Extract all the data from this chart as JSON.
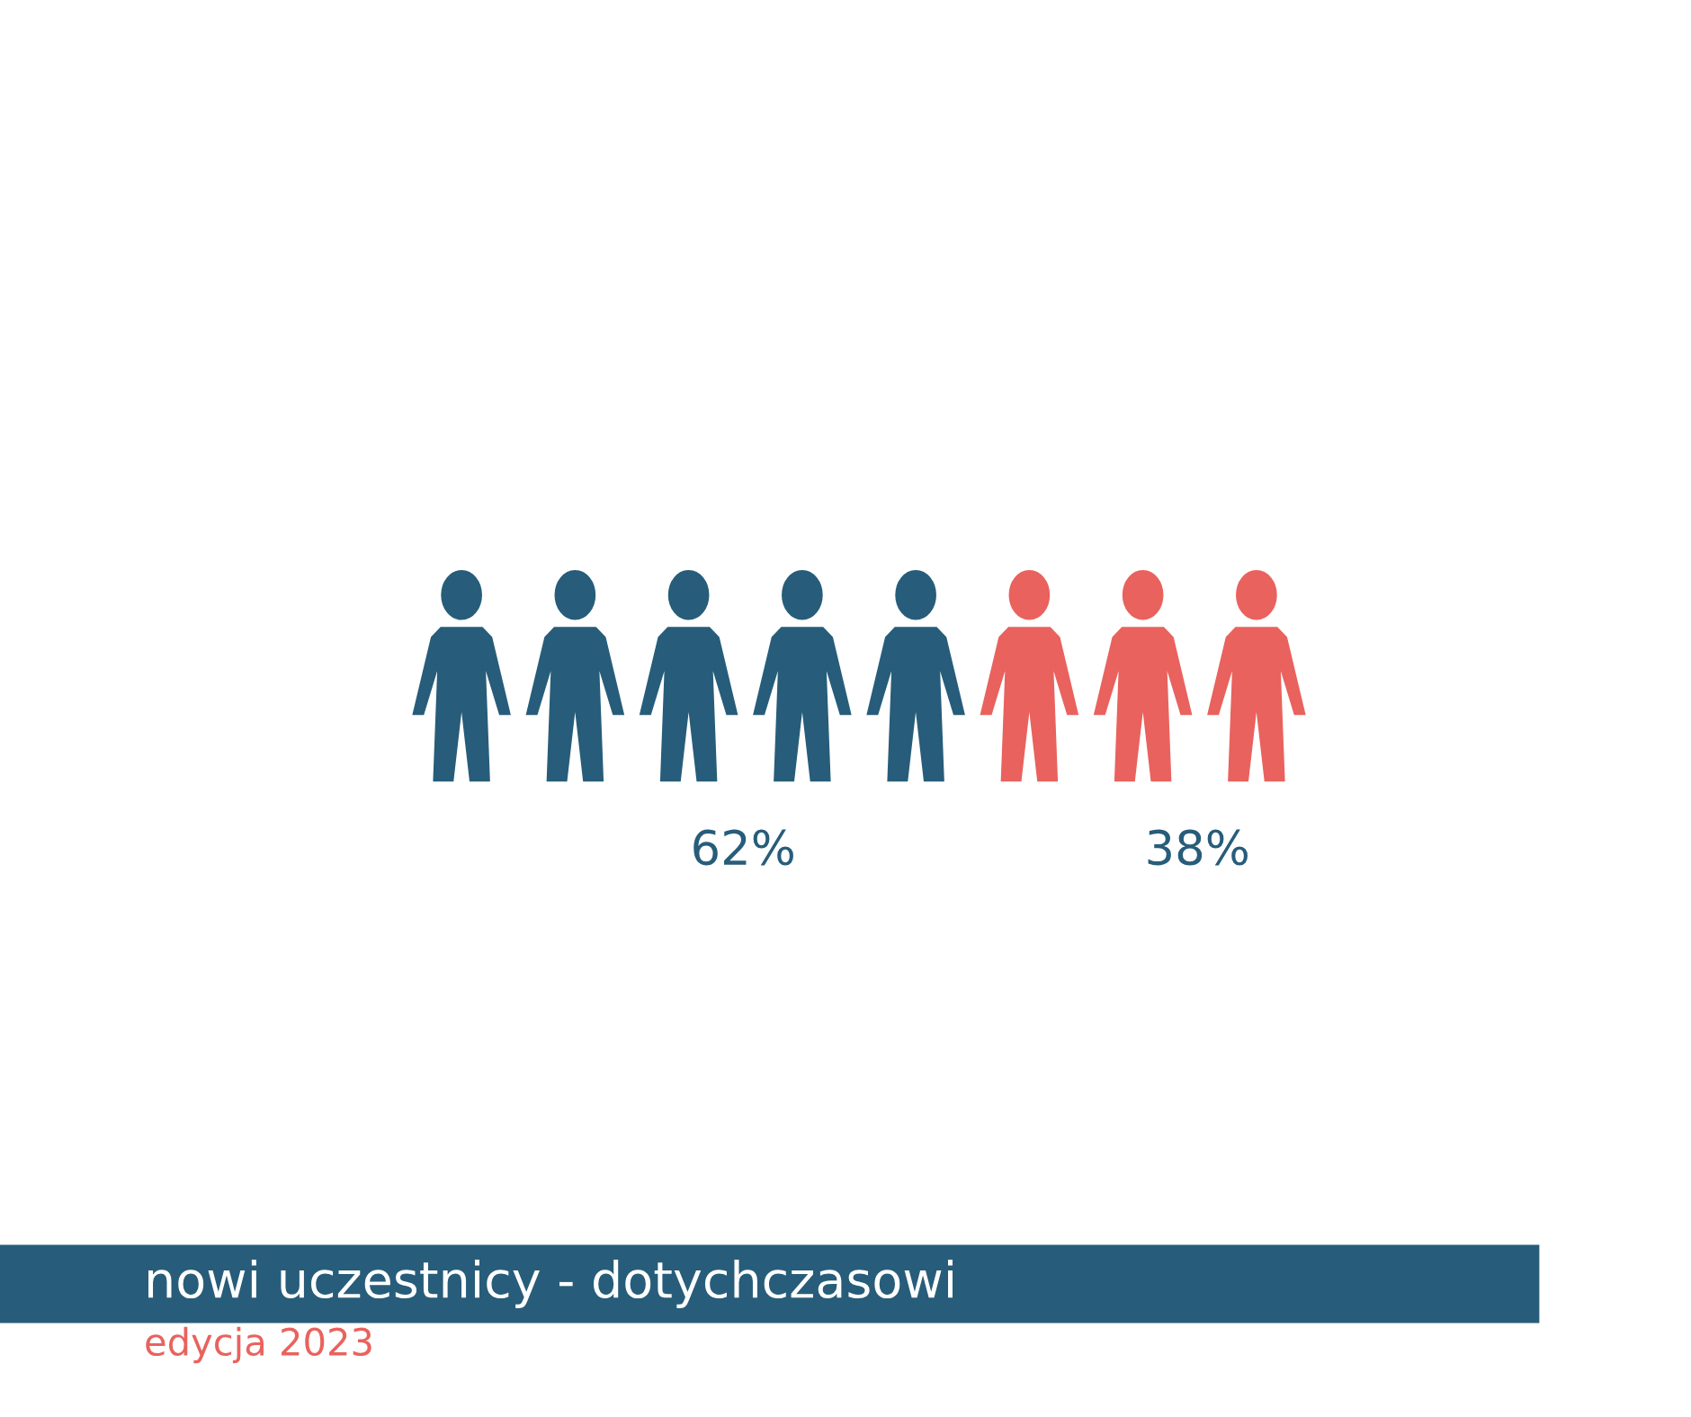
{
  "chart_data": {
    "type": "other",
    "title": "nowi uczestnicy - dotychczasowi",
    "subtitle": "edycja 2023",
    "categories": [
      null,
      null
    ],
    "values": [
      62,
      38
    ],
    "colors": [
      "#275d7a",
      "#e9625e"
    ],
    "data_labels": true,
    "value_labels": [
      "62%",
      "38%"
    ]
  }
}
